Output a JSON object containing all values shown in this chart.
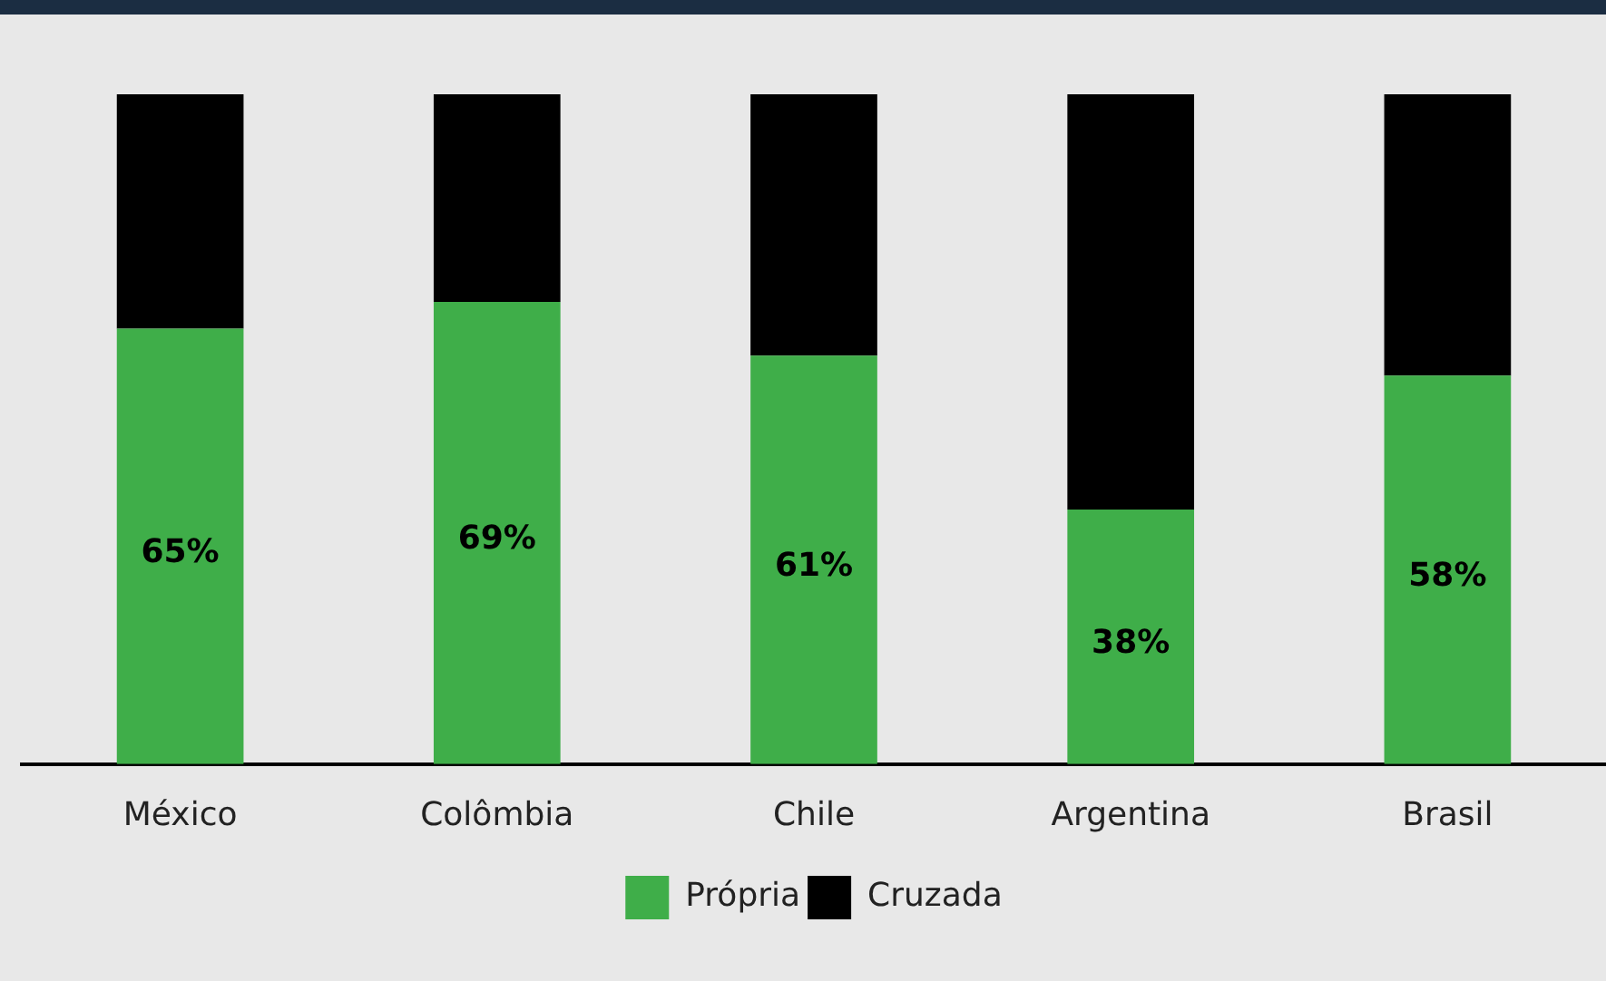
{
  "chart_data": {
    "type": "bar",
    "stacked": true,
    "categories": [
      "México",
      "Colômbia",
      "Chile",
      "Argentina",
      "Brasil"
    ],
    "series": [
      {
        "name": "Própria",
        "color": "#3fae49",
        "values": [
          65,
          69,
          61,
          38,
          58
        ],
        "value_labels": [
          "65%",
          "69%",
          "61%",
          "38%",
          "58%"
        ]
      },
      {
        "name": "Cruzada",
        "color": "#000000",
        "values": [
          35,
          31,
          39,
          62,
          42
        ]
      }
    ],
    "ylim": [
      0,
      100
    ],
    "tick_labels": "x",
    "legend": "bottom"
  }
}
